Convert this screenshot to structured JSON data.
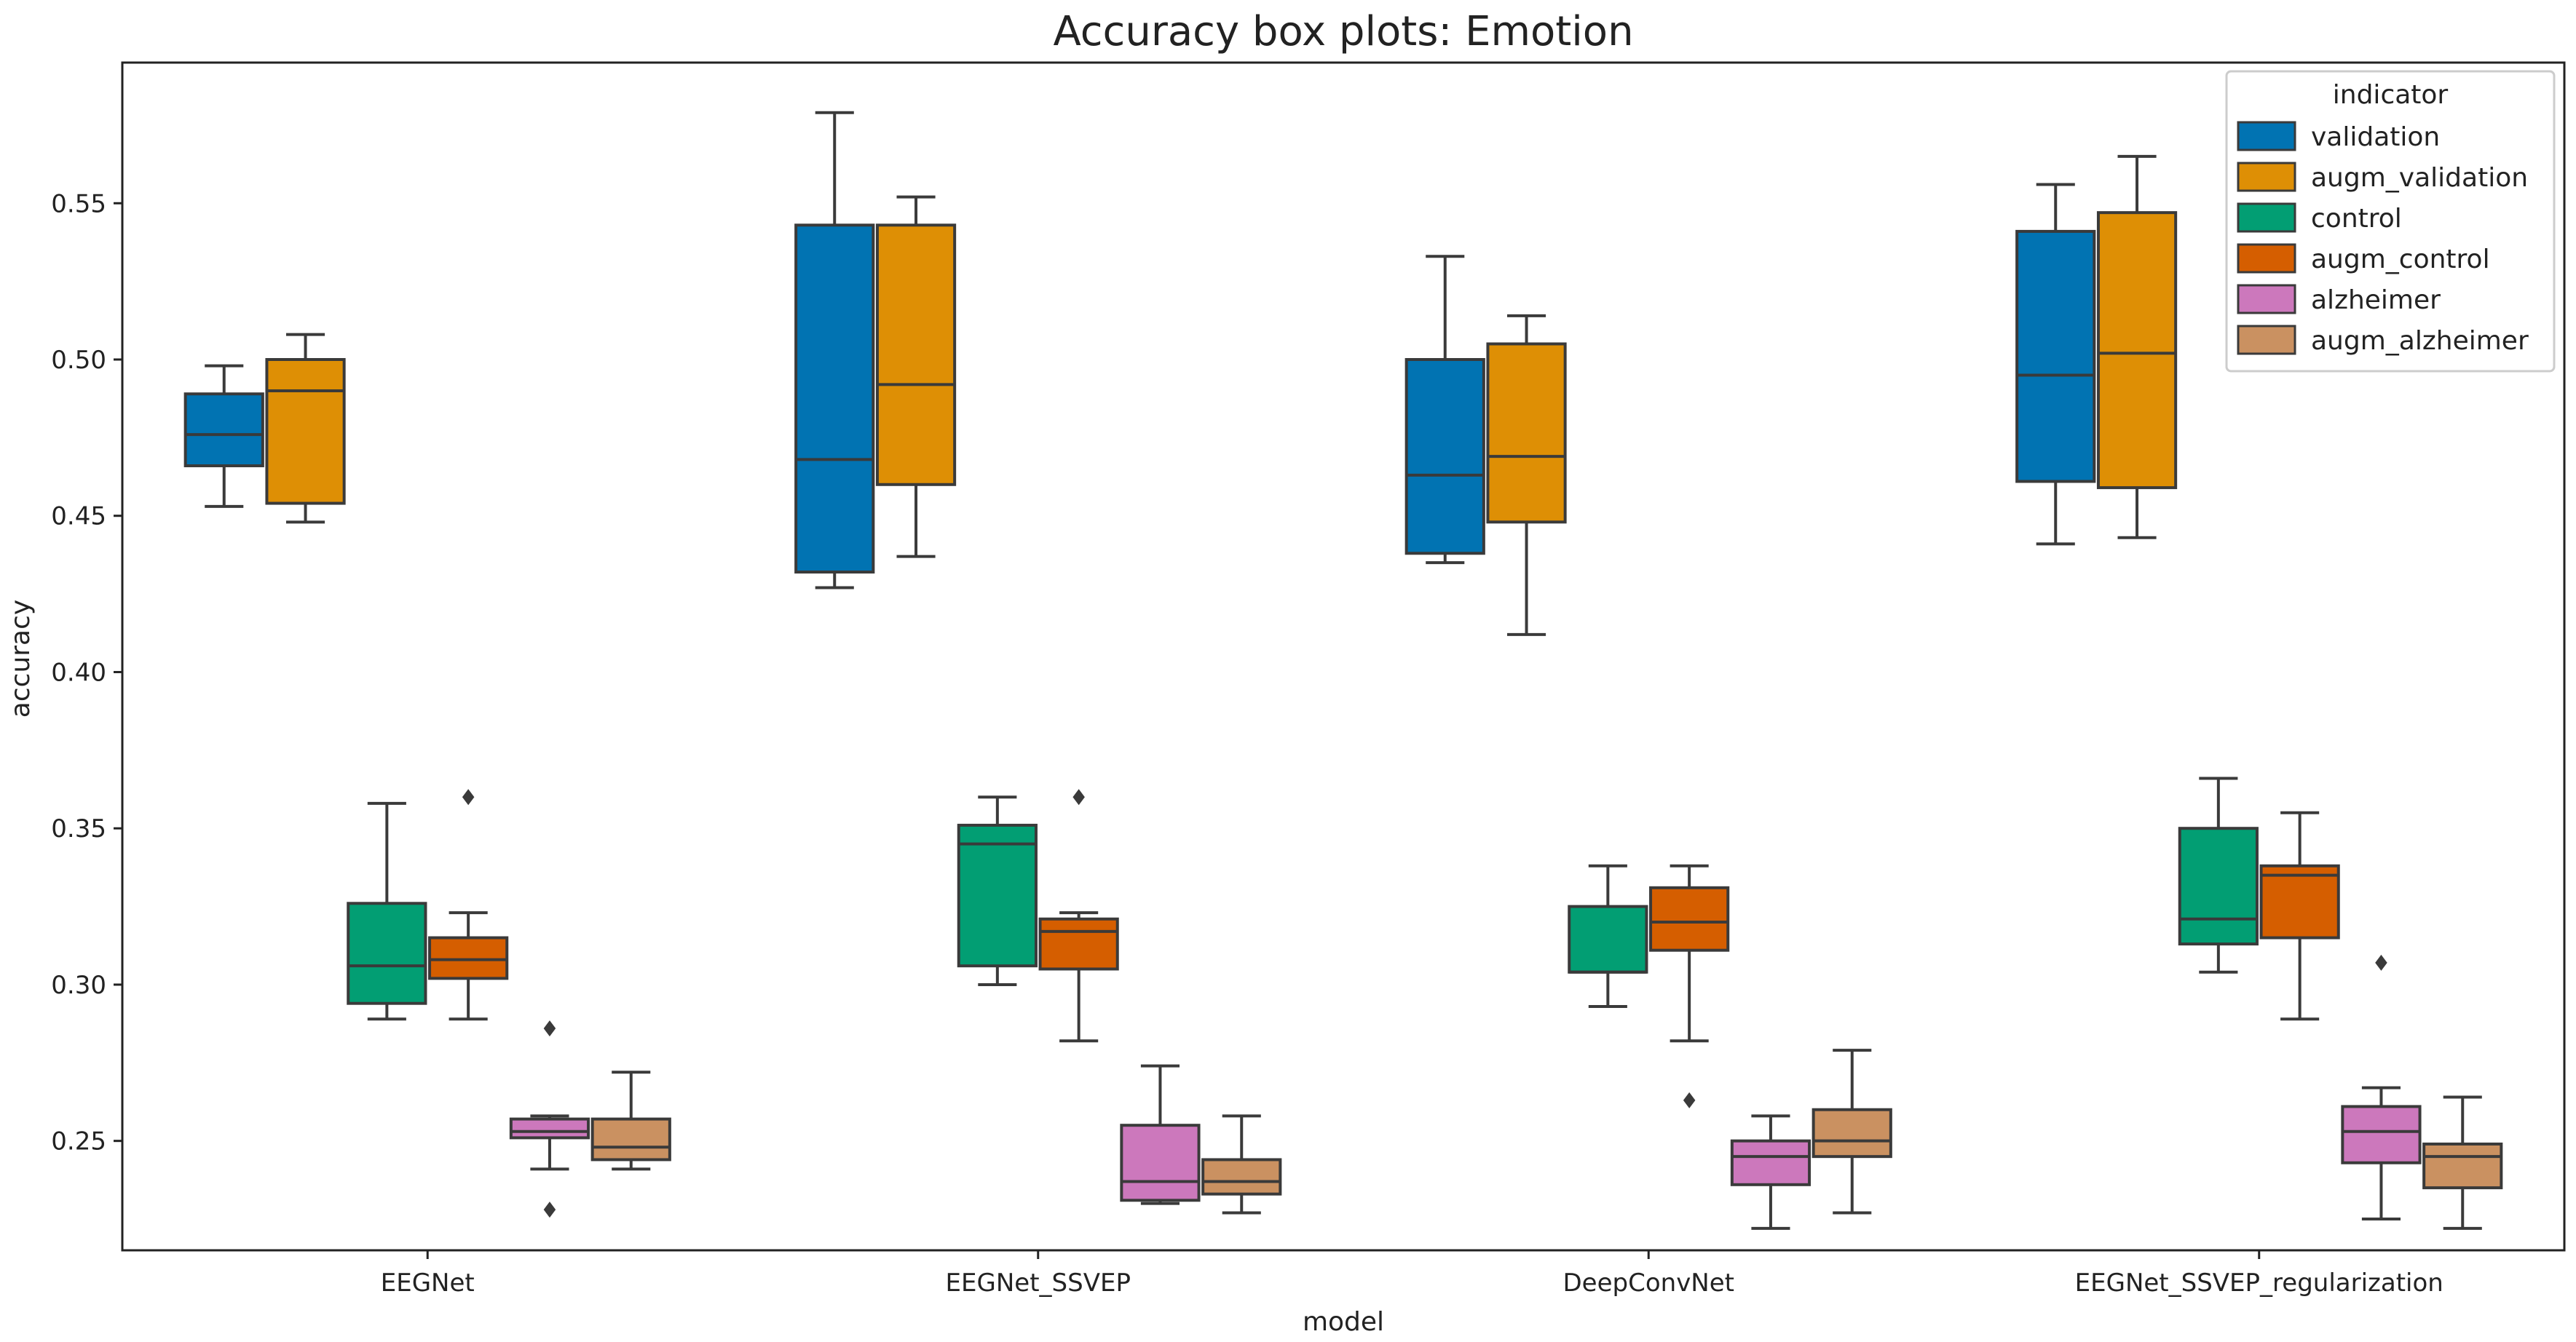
{
  "chart_data": {
    "type": "boxplot",
    "title": "Accuracy box plots: Emotion",
    "xlabel": "model",
    "ylabel": "accuracy",
    "ylim": [
      0.215,
      0.595
    ],
    "yticks": [
      0.25,
      0.3,
      0.35,
      0.4,
      0.45,
      0.5,
      0.55
    ],
    "ytick_labels": [
      "0.25",
      "0.30",
      "0.35",
      "0.40",
      "0.45",
      "0.50",
      "0.55"
    ],
    "categories": [
      "EEGNet",
      "EEGNet_SSVEP",
      "DeepConvNet",
      "EEGNet_SSVEP_regularization"
    ],
    "legend": {
      "title": "indicator",
      "location": "upper right"
    },
    "series": [
      {
        "name": "validation",
        "color": "#0173b2",
        "boxes": [
          {
            "whislo": 0.453,
            "q1": 0.466,
            "med": 0.476,
            "q3": 0.489,
            "whishi": 0.498,
            "fliers": []
          },
          {
            "whislo": 0.427,
            "q1": 0.432,
            "med": 0.468,
            "q3": 0.543,
            "whishi": 0.579,
            "fliers": []
          },
          {
            "whislo": 0.435,
            "q1": 0.438,
            "med": 0.463,
            "q3": 0.5,
            "whishi": 0.533,
            "fliers": []
          },
          {
            "whislo": 0.441,
            "q1": 0.461,
            "med": 0.495,
            "q3": 0.541,
            "whishi": 0.556,
            "fliers": []
          }
        ]
      },
      {
        "name": "augm_validation",
        "color": "#de8f05",
        "boxes": [
          {
            "whislo": 0.448,
            "q1": 0.454,
            "med": 0.49,
            "q3": 0.5,
            "whishi": 0.508,
            "fliers": []
          },
          {
            "whislo": 0.437,
            "q1": 0.46,
            "med": 0.492,
            "q3": 0.543,
            "whishi": 0.552,
            "fliers": []
          },
          {
            "whislo": 0.412,
            "q1": 0.448,
            "med": 0.469,
            "q3": 0.505,
            "whishi": 0.514,
            "fliers": []
          },
          {
            "whislo": 0.443,
            "q1": 0.459,
            "med": 0.502,
            "q3": 0.547,
            "whishi": 0.565,
            "fliers": []
          }
        ]
      },
      {
        "name": "control",
        "color": "#029e73",
        "boxes": [
          {
            "whislo": 0.289,
            "q1": 0.294,
            "med": 0.306,
            "q3": 0.326,
            "whishi": 0.358,
            "fliers": []
          },
          {
            "whislo": 0.3,
            "q1": 0.306,
            "med": 0.345,
            "q3": 0.351,
            "whishi": 0.36,
            "fliers": []
          },
          {
            "whislo": 0.293,
            "q1": 0.304,
            "med": 0.304,
            "q3": 0.325,
            "whishi": 0.338,
            "fliers": []
          },
          {
            "whislo": 0.304,
            "q1": 0.313,
            "med": 0.321,
            "q3": 0.35,
            "whishi": 0.366,
            "fliers": []
          }
        ]
      },
      {
        "name": "augm_control",
        "color": "#d55e00",
        "boxes": [
          {
            "whislo": 0.289,
            "q1": 0.302,
            "med": 0.308,
            "q3": 0.315,
            "whishi": 0.323,
            "fliers": [
              0.36
            ]
          },
          {
            "whislo": 0.282,
            "q1": 0.305,
            "med": 0.317,
            "q3": 0.321,
            "whishi": 0.323,
            "fliers": [
              0.36
            ]
          },
          {
            "whislo": 0.282,
            "q1": 0.311,
            "med": 0.32,
            "q3": 0.331,
            "whishi": 0.338,
            "fliers": [
              0.263
            ]
          },
          {
            "whislo": 0.289,
            "q1": 0.315,
            "med": 0.335,
            "q3": 0.338,
            "whishi": 0.355,
            "fliers": []
          }
        ]
      },
      {
        "name": "alzheimer",
        "color": "#cc78bc",
        "boxes": [
          {
            "whislo": 0.241,
            "q1": 0.251,
            "med": 0.253,
            "q3": 0.257,
            "whishi": 0.258,
            "fliers": [
              0.286,
              0.228
            ]
          },
          {
            "whislo": 0.23,
            "q1": 0.231,
            "med": 0.237,
            "q3": 0.255,
            "whishi": 0.274,
            "fliers": []
          },
          {
            "whislo": 0.222,
            "q1": 0.236,
            "med": 0.245,
            "q3": 0.25,
            "whishi": 0.258,
            "fliers": []
          },
          {
            "whislo": 0.225,
            "q1": 0.243,
            "med": 0.253,
            "q3": 0.261,
            "whishi": 0.267,
            "fliers": [
              0.307
            ]
          }
        ]
      },
      {
        "name": "augm_alzheimer",
        "color": "#ca9161",
        "boxes": [
          {
            "whislo": 0.241,
            "q1": 0.244,
            "med": 0.248,
            "q3": 0.257,
            "whishi": 0.272,
            "fliers": []
          },
          {
            "whislo": 0.227,
            "q1": 0.233,
            "med": 0.237,
            "q3": 0.244,
            "whishi": 0.258,
            "fliers": []
          },
          {
            "whislo": 0.227,
            "q1": 0.245,
            "med": 0.25,
            "q3": 0.26,
            "whishi": 0.279,
            "fliers": []
          },
          {
            "whislo": 0.222,
            "q1": 0.235,
            "med": 0.245,
            "q3": 0.249,
            "whishi": 0.264,
            "fliers": []
          }
        ]
      }
    ]
  }
}
